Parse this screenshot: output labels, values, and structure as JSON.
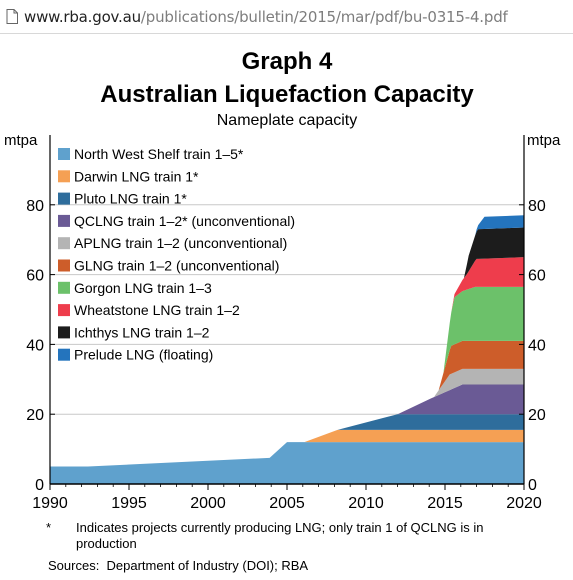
{
  "browser": {
    "url_host": "www.rba.gov.au",
    "url_path": "/publications/bulletin/2015/mar/pdf/bu-0315-4.pdf",
    "page_icon": "document-icon"
  },
  "chart_data": {
    "type": "area",
    "stacked": true,
    "graph_label": "Graph 4",
    "title": "Australian Liquefaction Capacity",
    "subtitle": "Nameplate capacity",
    "ylabel_left": "mtpa",
    "ylabel_right": "mtpa",
    "xlim": [
      1990,
      2020
    ],
    "ylim": [
      0,
      100
    ],
    "x_ticks": [
      1990,
      1995,
      2000,
      2005,
      2010,
      2015,
      2020
    ],
    "y_ticks": [
      0,
      20,
      40,
      60,
      80
    ],
    "grid": "horizontal",
    "legend_position": "top-left",
    "series": [
      {
        "name": "North West Shelf train 1–5*",
        "color": "#5fa1cd",
        "points": [
          [
            1990,
            5
          ],
          [
            1992.4,
            5
          ],
          [
            1992.4,
            7.5
          ],
          [
            2003.9,
            7.5
          ],
          [
            2003.9,
            12
          ],
          [
            2005,
            12
          ],
          [
            2020,
            12
          ]
        ]
      },
      {
        "name": "Darwin LNG train 1*",
        "color": "#f5a054",
        "points": [
          [
            1990,
            0
          ],
          [
            2006.1,
            0
          ],
          [
            2006.1,
            3.5
          ],
          [
            2020,
            3.5
          ]
        ]
      },
      {
        "name": "Pluto LNG train 1*",
        "color": "#2e6d9c",
        "points": [
          [
            1990,
            0
          ],
          [
            2008.2,
            0
          ],
          [
            2008.2,
            4.5
          ],
          [
            2020,
            4.5
          ]
        ]
      },
      {
        "name": "QCLNG train 1–2* (unconventional)",
        "color": "#6a5a95",
        "points": [
          [
            1990,
            0
          ],
          [
            2012,
            0
          ],
          [
            2014.1,
            4.5
          ],
          [
            2016.1,
            8.5
          ],
          [
            2020,
            8.5
          ]
        ]
      },
      {
        "name": "APLNG train 1–2 (unconventional)",
        "color": "#b4b4b4",
        "points": [
          [
            1990,
            0
          ],
          [
            2014.3,
            0
          ],
          [
            2015.3,
            4.5
          ],
          [
            2016.1,
            4.5
          ],
          [
            2020,
            4.5
          ]
        ]
      },
      {
        "name": "GLNG train 1–2 (unconventional)",
        "color": "#cd5d2a",
        "points": [
          [
            1990,
            0
          ],
          [
            2014.6,
            0
          ],
          [
            2015.4,
            8
          ],
          [
            2020,
            8
          ]
        ]
      },
      {
        "name": "Gorgon LNG train 1–3",
        "color": "#6cc16a",
        "points": [
          [
            1990,
            0
          ],
          [
            2014.9,
            0
          ],
          [
            2015.6,
            13.5
          ],
          [
            2016.9,
            15.5
          ],
          [
            2020,
            15.5
          ]
        ]
      },
      {
        "name": "Wheatstone LNG train 1–2",
        "color": "#ee3d4c",
        "points": [
          [
            1990,
            0
          ],
          [
            2015.4,
            0
          ],
          [
            2016.4,
            4.5
          ],
          [
            2017,
            8
          ],
          [
            2020,
            8.5
          ]
        ]
      },
      {
        "name": "Ichthys LNG train 1–2",
        "color": "#1c1c1c",
        "points": [
          [
            1990,
            0
          ],
          [
            2016.2,
            0
          ],
          [
            2016.5,
            4.5
          ],
          [
            2017.1,
            8.5
          ],
          [
            2020,
            8.5
          ]
        ]
      },
      {
        "name": "Prelude LNG (floating)",
        "color": "#2474bd",
        "points": [
          [
            1990,
            0
          ],
          [
            2016.9,
            0
          ],
          [
            2017.5,
            3.5
          ],
          [
            2020,
            3.5
          ]
        ]
      }
    ]
  },
  "footnote": {
    "mark": "*",
    "text": "Indicates projects currently producing LNG; only train 1 of QCLNG is in production"
  },
  "sources": "Sources:  Department of Industry (DOI); RBA"
}
